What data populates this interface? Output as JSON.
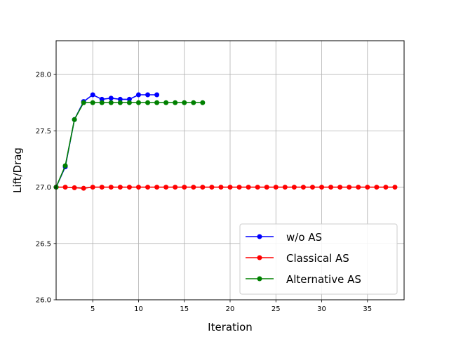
{
  "chart_data": {
    "type": "line",
    "xlabel": "Iteration",
    "ylabel": "Lift/Drag",
    "xlim": [
      1,
      39
    ],
    "ylim": [
      26.0,
      28.3
    ],
    "xticks": [
      5,
      10,
      15,
      20,
      25,
      30,
      35
    ],
    "xtick_labels": [
      "5",
      "10",
      "15",
      "20",
      "25",
      "30",
      "35"
    ],
    "yticks": [
      26.0,
      26.5,
      27.0,
      27.5,
      28.0
    ],
    "ytick_labels": [
      "26.0",
      "26.5",
      "27.0",
      "27.5",
      "28.0"
    ],
    "grid": true,
    "legend_position": "lower-right",
    "series": [
      {
        "name": "w/o AS",
        "color": "#0000ff",
        "x": [
          1,
          2,
          3,
          4,
          5,
          6,
          7,
          8,
          9,
          10,
          11,
          12
        ],
        "y": [
          27.0,
          27.18,
          27.6,
          27.76,
          27.82,
          27.78,
          27.79,
          27.78,
          27.78,
          27.82,
          27.82,
          27.82
        ]
      },
      {
        "name": "Classical AS",
        "color": "#ff0000",
        "x": [
          1,
          2,
          3,
          4,
          5,
          6,
          7,
          8,
          9,
          10,
          11,
          12,
          13,
          14,
          15,
          16,
          17,
          18,
          19,
          20,
          21,
          22,
          23,
          24,
          25,
          26,
          27,
          28,
          29,
          30,
          31,
          32,
          33,
          34,
          35,
          36,
          37,
          38
        ],
        "y": [
          27.0,
          27.0,
          26.995,
          26.99,
          27.0,
          27.0,
          27.0,
          27.0,
          27.0,
          27.0,
          27.0,
          27.0,
          27.0,
          27.0,
          27.0,
          27.0,
          27.0,
          27.0,
          27.0,
          27.0,
          27.0,
          27.0,
          27.0,
          27.0,
          27.0,
          27.0,
          27.0,
          27.0,
          27.0,
          27.0,
          27.0,
          27.0,
          27.0,
          27.0,
          27.0,
          27.0,
          27.0,
          27.0
        ]
      },
      {
        "name": "Alternative AS",
        "color": "#008000",
        "x": [
          1,
          2,
          3,
          4,
          5,
          6,
          7,
          8,
          9,
          10,
          11,
          12,
          13,
          14,
          15,
          16,
          17
        ],
        "y": [
          27.0,
          27.19,
          27.6,
          27.75,
          27.75,
          27.75,
          27.75,
          27.75,
          27.75,
          27.75,
          27.75,
          27.75,
          27.75,
          27.75,
          27.75,
          27.75,
          27.75
        ]
      }
    ]
  }
}
